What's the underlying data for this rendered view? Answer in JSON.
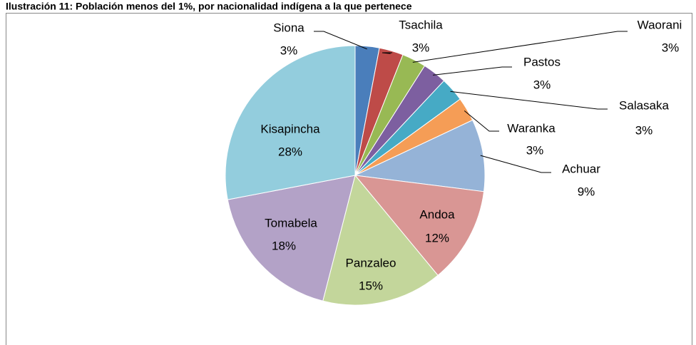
{
  "chart_data": {
    "type": "pie",
    "title": "Ilustración 11: Población menos del 1%, por nacionalidad indígena a la que pertenece",
    "categories": [
      "Siona",
      "Tsachila",
      "Waorani",
      "Pastos",
      "Salasaka",
      "Waranka",
      "Achuar",
      "Andoa",
      "Panzaleo",
      "Tomabela",
      "Kisapincha"
    ],
    "values": [
      3,
      3,
      3,
      3,
      3,
      3,
      9,
      12,
      15,
      18,
      28
    ],
    "value_labels": [
      "3%",
      "3%",
      "3%",
      "3%",
      "3%",
      "3%",
      "9%",
      "12%",
      "15%",
      "18%",
      "28%"
    ],
    "colors": [
      "#4a7ebb",
      "#be4b48",
      "#98b954",
      "#7d5fa0",
      "#46aac5",
      "#f59d56",
      "#95b3d7",
      "#d99694",
      "#c3d69b",
      "#b3a2c7",
      "#93cddd"
    ]
  }
}
